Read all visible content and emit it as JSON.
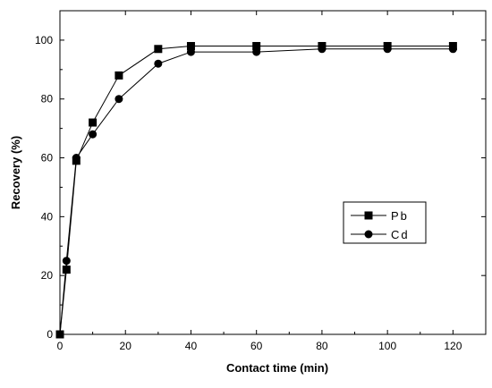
{
  "chart_data": {
    "type": "line",
    "title": "",
    "xlabel": "Contact time (min)",
    "ylabel": "Recovery (%)",
    "xlim": [
      0,
      130
    ],
    "ylim": [
      0,
      110
    ],
    "xticks": [
      0,
      20,
      40,
      60,
      80,
      100,
      120
    ],
    "yticks": [
      0,
      20,
      40,
      60,
      80,
      100
    ],
    "grid": false,
    "legend_position": "right-middle",
    "series": [
      {
        "name": "Pb",
        "marker": "square",
        "color": "#000000",
        "x": [
          0,
          2,
          5,
          10,
          18,
          30,
          40,
          60,
          80,
          100,
          120
        ],
        "y": [
          0,
          22,
          59,
          72,
          88,
          97,
          98,
          98,
          98,
          98,
          98
        ]
      },
      {
        "name": "Cd",
        "marker": "circle",
        "color": "#000000",
        "x": [
          0,
          2,
          5,
          10,
          18,
          30,
          40,
          60,
          80,
          100,
          120
        ],
        "y": [
          0,
          25,
          60,
          68,
          80,
          92,
          96,
          96,
          97,
          97,
          97
        ]
      }
    ]
  }
}
